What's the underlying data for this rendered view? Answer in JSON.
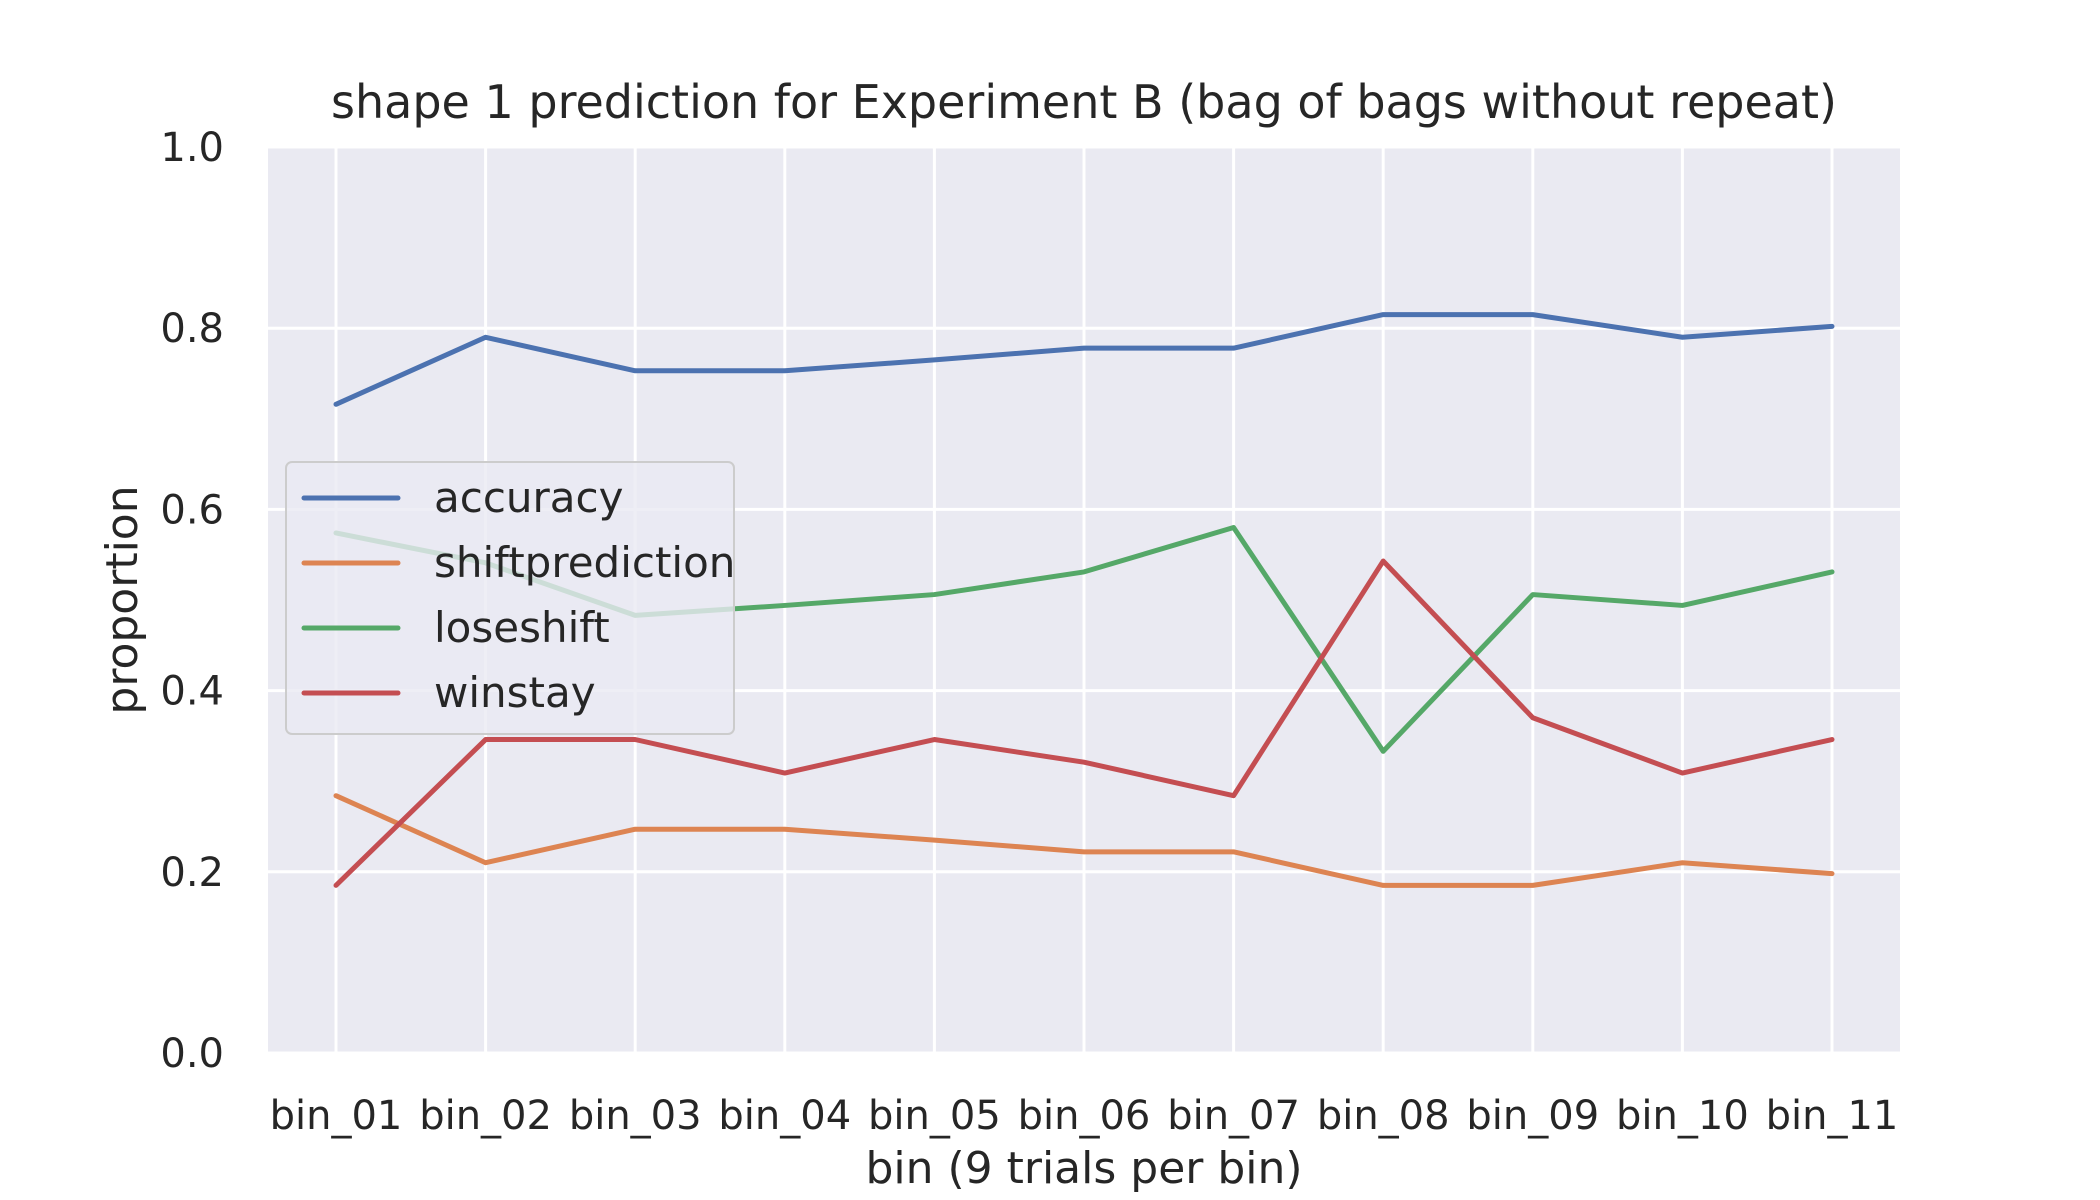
{
  "chart_data": {
    "type": "line",
    "title": "shape 1 prediction for Experiment B (bag of bags without repeat)",
    "xlabel": "bin (9 trials per bin)",
    "ylabel": "proportion",
    "categories": [
      "bin_01",
      "bin_02",
      "bin_03",
      "bin_04",
      "bin_05",
      "bin_06",
      "bin_07",
      "bin_08",
      "bin_09",
      "bin_10",
      "bin_11"
    ],
    "ylim": [
      0.0,
      1.0
    ],
    "yticks": [
      "0.0",
      "0.2",
      "0.4",
      "0.6",
      "0.8",
      "1.0"
    ],
    "ytick_values": [
      0.0,
      0.2,
      0.4,
      0.6,
      0.8,
      1.0
    ],
    "grid": true,
    "legend_position": "center-left",
    "series": [
      {
        "name": "accuracy",
        "color": "#4c72b0",
        "values": [
          0.716,
          0.79,
          0.753,
          0.753,
          0.765,
          0.778,
          0.778,
          0.815,
          0.815,
          0.79,
          0.802
        ]
      },
      {
        "name": "shiftprediction",
        "color": "#dd8452",
        "values": [
          0.284,
          0.21,
          0.247,
          0.247,
          0.235,
          0.222,
          0.222,
          0.185,
          0.185,
          0.21,
          0.198
        ]
      },
      {
        "name": "loseshift",
        "color": "#55a868",
        "values": [
          0.574,
          0.541,
          0.483,
          0.494,
          0.506,
          0.531,
          0.58,
          0.333,
          0.506,
          0.494,
          0.531
        ]
      },
      {
        "name": "winstay",
        "color": "#c44e52",
        "values": [
          0.185,
          0.346,
          0.346,
          0.309,
          0.346,
          0.321,
          0.284,
          0.543,
          0.37,
          0.309,
          0.346
        ]
      }
    ]
  }
}
